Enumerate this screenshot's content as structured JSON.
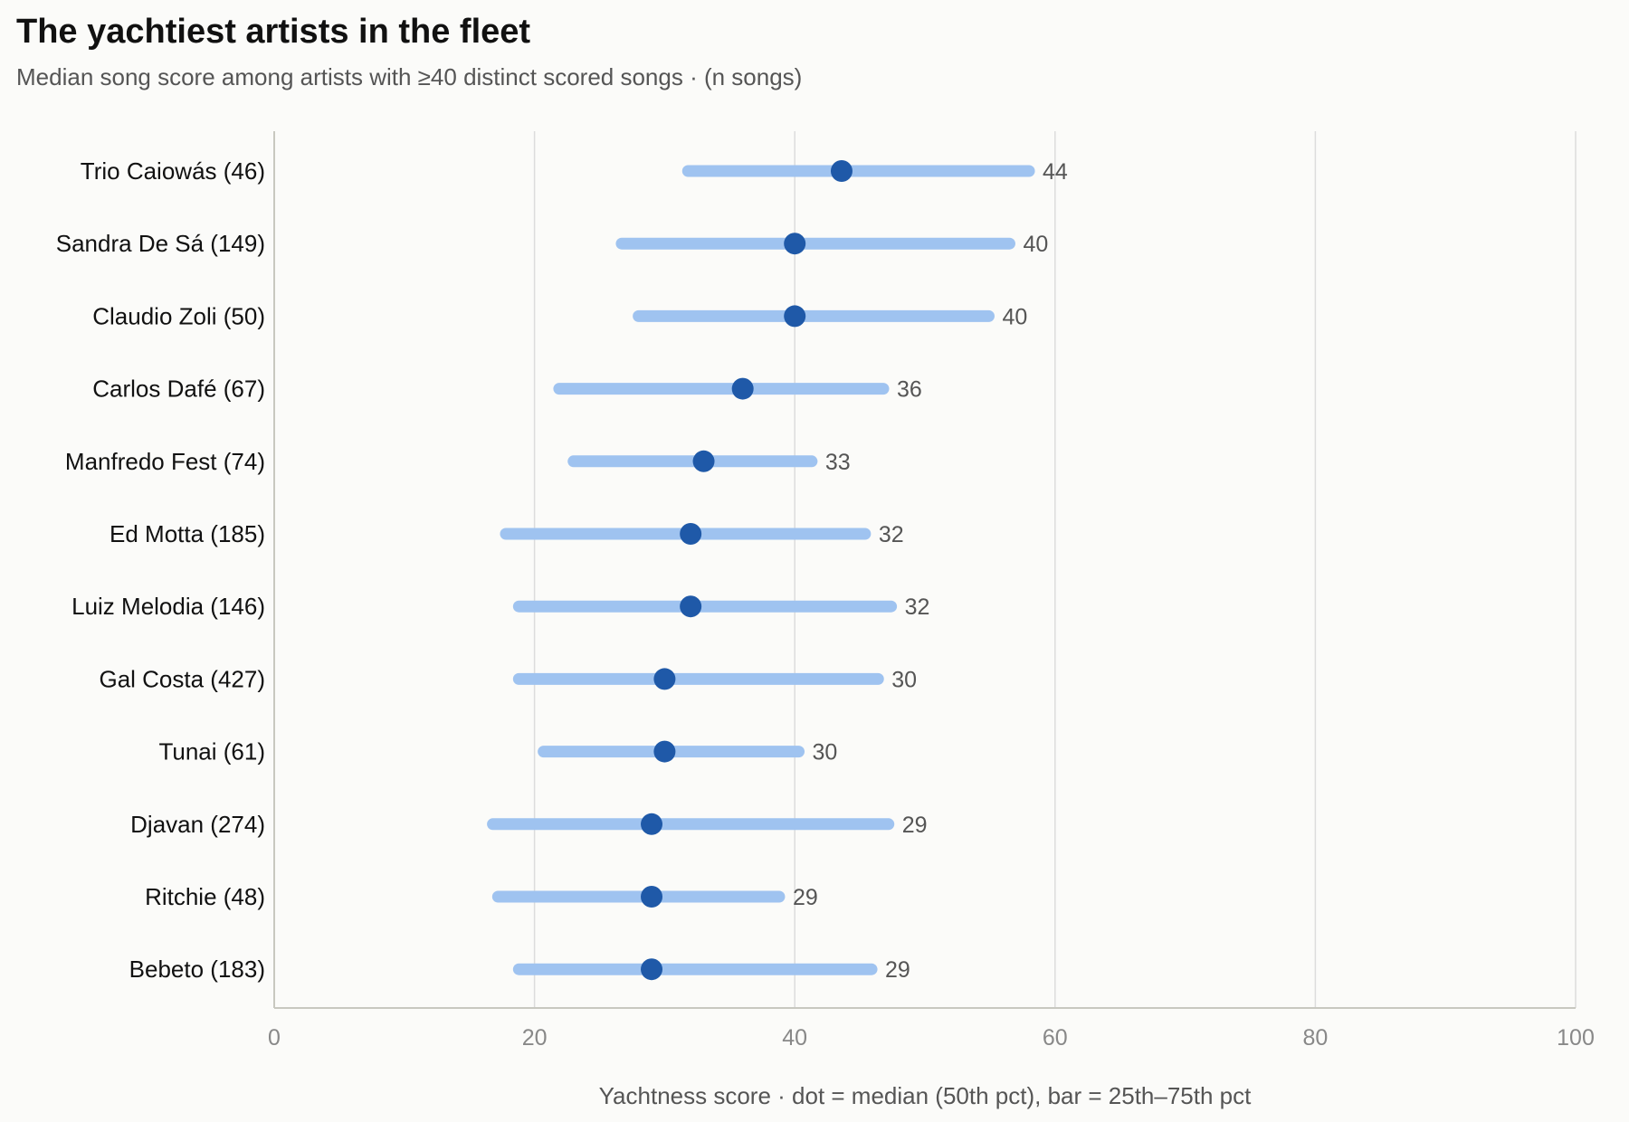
{
  "chart_data": {
    "type": "dot-range",
    "title": "The yachtiest artists in the fleet",
    "subtitle": "Median song score among artists with ≥40 distinct scored songs · (n songs)",
    "xlabel": "Yachtness score · dot = median (50th pct), bar = 25th–75th pct",
    "xlim": [
      0,
      100
    ],
    "xticks": [
      0,
      20,
      40,
      60,
      80,
      100
    ],
    "grid": "vertical",
    "colors": {
      "bar": "#9fc3f0",
      "dot": "#1f59a8",
      "grid": "#dcdcdc",
      "axis": "#c8c8c0",
      "label": "#555555"
    },
    "rows": [
      {
        "name": "Trio Caiowás",
        "n": "(46)",
        "p25": 31.8,
        "p50": 43.6,
        "p75": 58.0,
        "label": "44"
      },
      {
        "name": "Sandra De Sá",
        "n": "(149)",
        "p25": 26.7,
        "p50": 40.0,
        "p75": 56.5,
        "label": "40"
      },
      {
        "name": "Claudio Zoli",
        "n": "(50)",
        "p25": 28.0,
        "p50": 40.0,
        "p75": 54.9,
        "label": "40"
      },
      {
        "name": "Carlos Dafé",
        "n": "(67)",
        "p25": 21.9,
        "p50": 36.0,
        "p75": 46.8,
        "label": "36"
      },
      {
        "name": "Manfredo Fest",
        "n": "(74)",
        "p25": 23.0,
        "p50": 33.0,
        "p75": 41.3,
        "label": "33"
      },
      {
        "name": "Ed Motta",
        "n": "(185)",
        "p25": 17.8,
        "p50": 32.0,
        "p75": 45.4,
        "label": "32"
      },
      {
        "name": "Luiz Melodia",
        "n": "(146)",
        "p25": 18.8,
        "p50": 32.0,
        "p75": 47.4,
        "label": "32"
      },
      {
        "name": "Gal Costa",
        "n": "(427)",
        "p25": 18.8,
        "p50": 30.0,
        "p75": 46.4,
        "label": "30"
      },
      {
        "name": "Tunai",
        "n": "(61)",
        "p25": 20.7,
        "p50": 30.0,
        "p75": 40.3,
        "label": "30"
      },
      {
        "name": "Djavan",
        "n": "(274)",
        "p25": 16.8,
        "p50": 29.0,
        "p75": 47.2,
        "label": "29"
      },
      {
        "name": "Ritchie",
        "n": "(48)",
        "p25": 17.2,
        "p50": 29.0,
        "p75": 38.8,
        "label": "29"
      },
      {
        "name": "Bebeto",
        "n": "(183)",
        "p25": 18.8,
        "p50": 29.0,
        "p75": 45.9,
        "label": "29"
      }
    ]
  }
}
